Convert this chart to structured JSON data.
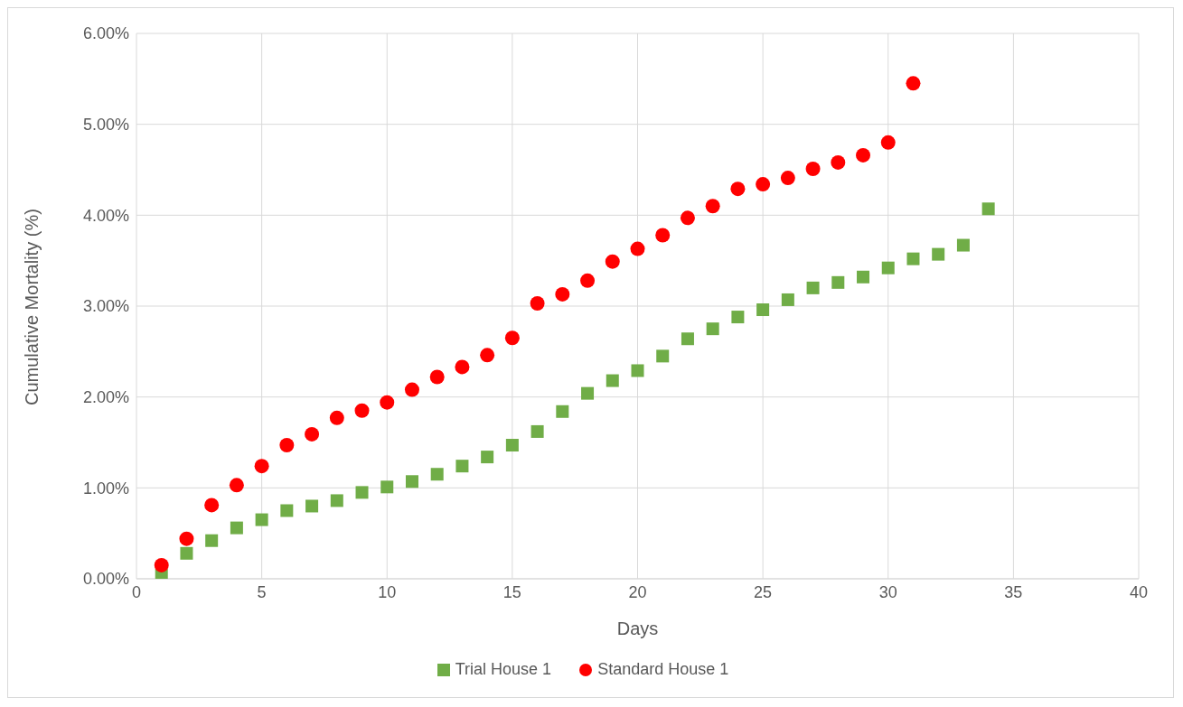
{
  "chart_data": {
    "type": "scatter",
    "xlabel": "Days",
    "ylabel": "Cumulative Mortality (%)",
    "xlim": [
      0,
      40
    ],
    "xticks": [
      0,
      5,
      10,
      15,
      20,
      25,
      30,
      35,
      40
    ],
    "ylim": [
      0,
      6
    ],
    "yticks": [
      {
        "value": 0,
        "label": "0.00%"
      },
      {
        "value": 1,
        "label": "1.00%"
      },
      {
        "value": 2,
        "label": "2.00%"
      },
      {
        "value": 3,
        "label": "3.00%"
      },
      {
        "value": 4,
        "label": "4.00%"
      },
      {
        "value": 5,
        "label": "5.00%"
      },
      {
        "value": 6,
        "label": "6.00%"
      }
    ],
    "grid": true,
    "legend": "bottom",
    "series": [
      {
        "name": "Trial House 1",
        "color": "#70ad47",
        "marker": "square",
        "x": [
          1,
          2,
          3,
          4,
          5,
          6,
          7,
          8,
          9,
          10,
          11,
          12,
          13,
          14,
          15,
          16,
          17,
          18,
          19,
          20,
          21,
          22,
          23,
          24,
          25,
          26,
          27,
          28,
          29,
          30,
          31,
          32,
          33,
          34
        ],
        "values": [
          0.04,
          0.28,
          0.42,
          0.56,
          0.65,
          0.75,
          0.8,
          0.86,
          0.95,
          1.01,
          1.07,
          1.15,
          1.24,
          1.34,
          1.47,
          1.62,
          1.84,
          2.04,
          2.18,
          2.29,
          2.45,
          2.64,
          2.75,
          2.88,
          2.96,
          3.07,
          3.2,
          3.26,
          3.32,
          3.42,
          3.52,
          3.57,
          3.67,
          4.07
        ]
      },
      {
        "name": "Standard House 1",
        "color": "#ff0000",
        "marker": "circle",
        "x": [
          1,
          2,
          3,
          4,
          5,
          6,
          7,
          8,
          9,
          10,
          11,
          12,
          13,
          14,
          15,
          16,
          17,
          18,
          19,
          20,
          21,
          22,
          23,
          24,
          25,
          26,
          27,
          28,
          29,
          30,
          31
        ],
        "values": [
          0.15,
          0.44,
          0.81,
          1.03,
          1.24,
          1.47,
          1.59,
          1.77,
          1.85,
          1.94,
          2.08,
          2.22,
          2.33,
          2.46,
          2.65,
          3.03,
          3.13,
          3.28,
          3.49,
          3.63,
          3.78,
          3.97,
          4.1,
          4.29,
          4.34,
          4.41,
          4.51,
          4.58,
          4.66,
          4.8,
          5.45
        ]
      }
    ]
  }
}
